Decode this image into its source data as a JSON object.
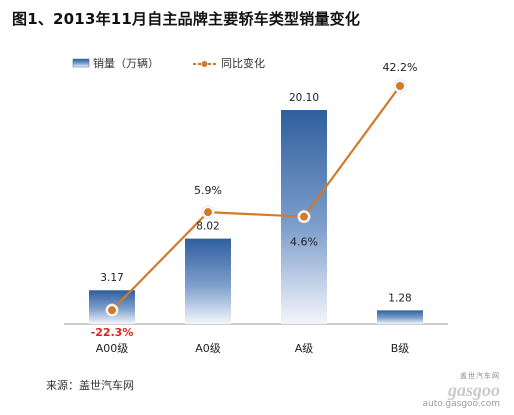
{
  "title": "图1、2013年11月自主品牌主要轿车类型销量变化",
  "source": "来源：盖世汽车网",
  "logo": {
    "cn": "盖世汽车网",
    "brand": "gasgoo",
    "url": "auto.gasgoo.com"
  },
  "colors": {
    "bar_top": "#2f5f9e",
    "bar_bottom": "#f3f6fb",
    "line": "#d07a2a",
    "negative_label": "#e02020",
    "axis": "#999999"
  },
  "chart_data": {
    "type": "bar",
    "categories": [
      "A00级",
      "A0级",
      "A级",
      "B级"
    ],
    "series": [
      {
        "name": "销量（万辆）",
        "type": "bar",
        "values": [
          3.17,
          8.02,
          20.1,
          1.28
        ],
        "labels": [
          "3.17",
          "8.02",
          "20.10",
          "1.28"
        ]
      },
      {
        "name": "同比变化",
        "type": "line",
        "axis": "secondary",
        "values": [
          -22.3,
          5.9,
          4.6,
          42.2
        ],
        "labels": [
          "-22.3%",
          "5.9%",
          "4.6%",
          "42.2%"
        ]
      }
    ],
    "ylim": [
      0,
      20.1
    ],
    "y2lim": [
      -26,
      42.2
    ],
    "legend": "top-left",
    "grid": false
  }
}
